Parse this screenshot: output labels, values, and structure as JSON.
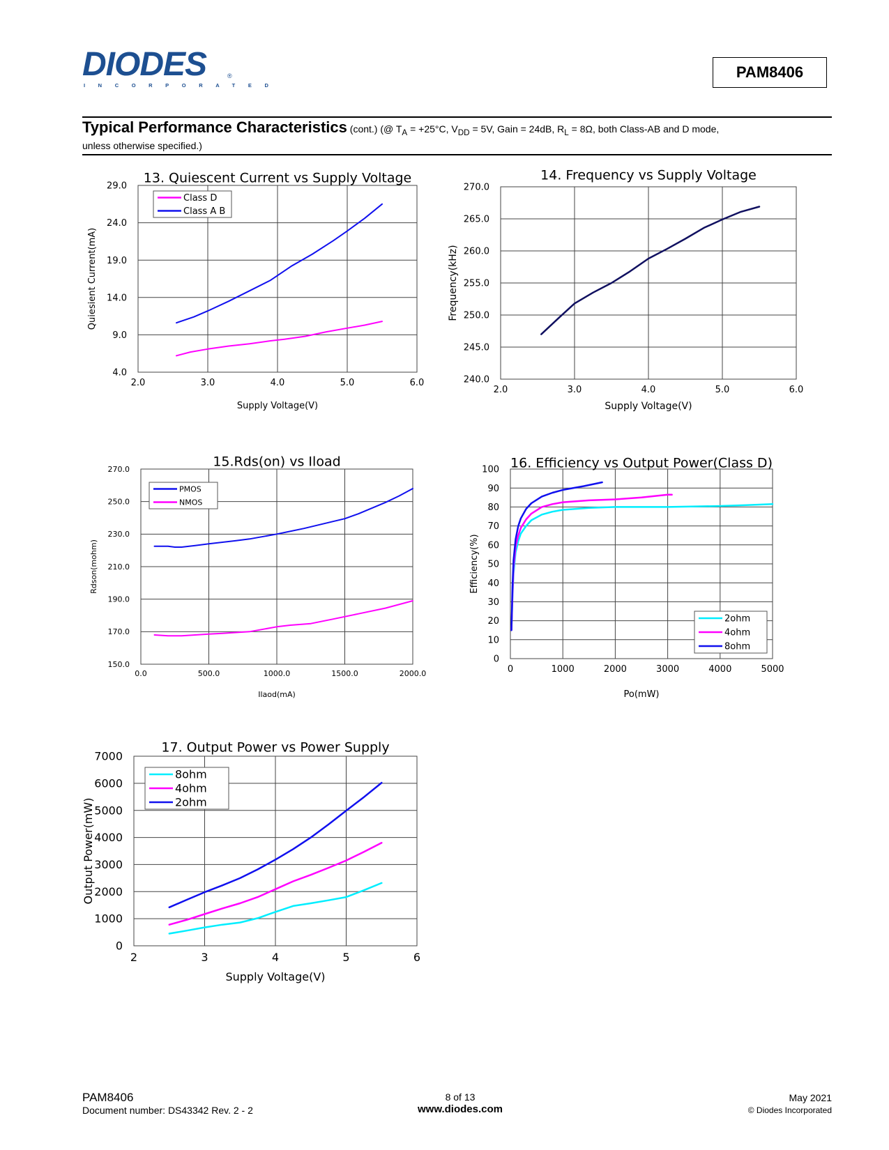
{
  "header": {
    "logo_text": "DIODES",
    "logo_subtext": "INCORPORATED",
    "logo_registered": "®",
    "part_number": "PAM8406"
  },
  "section": {
    "title": "Typical Performance Characteristics",
    "cont": "(cont.)",
    "conditions_prefix": "(@ T",
    "ta_sub": "A",
    "conditions_mid1": " = +25°C, V",
    "vdd_sub": "DD",
    "conditions_mid2": " = 5V, Gain = 24dB, R",
    "rl_sub": "L",
    "conditions_end": " = 8Ω, both Class-AB and D mode,",
    "conditions_line2": "unless otherwise specified.)"
  },
  "colors": {
    "magenta": "#ff00ff",
    "blue": "#1010ee",
    "navy": "#101060",
    "cyan": "#00eeff",
    "logo": "#1d4f91"
  },
  "footer": {
    "part": "PAM8406",
    "doc_number": "Document number: DS43342 Rev. 2 - 2",
    "page": "8 of 13",
    "url": "www.diodes.com",
    "date": "May 2021",
    "copyright": "© Diodes Incorporated"
  },
  "chart_data": [
    {
      "id": "chart13",
      "type": "line",
      "title": "13. Quiescent Current vs Supply Voltage",
      "xlabel": "Supply Voltage(V)",
      "ylabel": "Quiesient Current(mA)",
      "xlim": [
        2.0,
        6.0
      ],
      "ylim": [
        4.0,
        29.0
      ],
      "xticks": [
        2.0,
        3.0,
        4.0,
        5.0,
        6.0
      ],
      "yticks": [
        4.0,
        9.0,
        14.0,
        19.0,
        24.0,
        29.0
      ],
      "tick_decimals": 1,
      "legend": "top-left",
      "series": [
        {
          "name": "Class D",
          "color": "#ff00ff",
          "x": [
            2.55,
            2.75,
            3.0,
            3.3,
            3.6,
            3.9,
            4.1,
            4.4,
            4.7,
            5.0,
            5.25,
            5.5
          ],
          "y": [
            6.2,
            6.7,
            7.1,
            7.5,
            7.8,
            8.2,
            8.4,
            8.8,
            9.4,
            9.9,
            10.3,
            10.8
          ]
        },
        {
          "name": "Class A B",
          "color": "#1010ee",
          "x": [
            2.55,
            2.8,
            3.0,
            3.3,
            3.6,
            3.9,
            4.2,
            4.5,
            4.8,
            5.0,
            5.25,
            5.5
          ],
          "y": [
            10.6,
            11.4,
            12.2,
            13.5,
            14.9,
            16.3,
            18.2,
            19.8,
            21.6,
            22.9,
            24.6,
            26.5
          ]
        }
      ]
    },
    {
      "id": "chart14",
      "type": "line",
      "title": "14. Frequency vs Supply Voltage",
      "xlabel": "Supply Voltage(V)",
      "ylabel": "Frequency(kHz)",
      "xlim": [
        2.0,
        6.0
      ],
      "ylim": [
        240.0,
        270.0
      ],
      "xticks": [
        2.0,
        3.0,
        4.0,
        5.0,
        6.0
      ],
      "yticks": [
        240.0,
        245.0,
        250.0,
        255.0,
        260.0,
        265.0,
        270.0
      ],
      "tick_decimals": 1,
      "legend": "none",
      "series": [
        {
          "name": "Frequency",
          "color": "#101060",
          "x": [
            2.55,
            2.8,
            3.0,
            3.25,
            3.5,
            3.75,
            4.0,
            4.25,
            4.5,
            4.75,
            5.0,
            5.25,
            5.5
          ],
          "y": [
            247.0,
            249.7,
            251.8,
            253.5,
            255.0,
            256.8,
            258.8,
            260.3,
            261.9,
            263.6,
            264.9,
            266.1,
            266.9
          ]
        }
      ]
    },
    {
      "id": "chart15",
      "type": "line",
      "title": "15.Rds(on) vs Iload",
      "xlabel": "Ilaod(mA)",
      "ylabel": "Rdson(mohm)",
      "xlim": [
        0,
        2000
      ],
      "ylim": [
        150.0,
        270.0
      ],
      "xticks": [
        0,
        500,
        1000,
        1500,
        2000
      ],
      "yticks": [
        150.0,
        170.0,
        190.0,
        210.0,
        230.0,
        250.0,
        270.0
      ],
      "tick_decimals": 1,
      "legend": "top-left",
      "series": [
        {
          "name": "PMOS",
          "color": "#1010ee",
          "x": [
            100,
            200,
            250,
            300,
            400,
            500,
            600,
            700,
            800,
            900,
            1000,
            1200,
            1400,
            1500,
            1600,
            1800,
            1900,
            2000
          ],
          "y": [
            222.5,
            222.5,
            222.0,
            222.0,
            223.0,
            224.0,
            225.0,
            226.0,
            227.0,
            228.5,
            230.0,
            233.5,
            237.5,
            239.5,
            242.5,
            249.5,
            253.5,
            258.0
          ]
        },
        {
          "name": "NMOS",
          "color": "#ff00ff",
          "x": [
            100,
            200,
            300,
            400,
            500,
            600,
            800,
            1000,
            1100,
            1250,
            1400,
            1600,
            1800,
            2000
          ],
          "y": [
            168.0,
            167.5,
            167.5,
            168.0,
            168.5,
            169.0,
            170.0,
            173.0,
            174.0,
            175.0,
            177.5,
            181.0,
            184.5,
            189.0
          ]
        }
      ]
    },
    {
      "id": "chart16",
      "type": "line",
      "title": "16. Efficiency vs Output Power(Class D)",
      "xlabel": "Po(mW)",
      "ylabel": "Efficiency(%)",
      "xlim": [
        0,
        5000
      ],
      "ylim": [
        0,
        100
      ],
      "xticks": [
        0,
        1000,
        2000,
        3000,
        4000,
        5000
      ],
      "yticks": [
        0,
        10,
        20,
        30,
        40,
        50,
        60,
        70,
        80,
        90,
        100
      ],
      "tick_decimals": 0,
      "legend": "bottom-right",
      "series": [
        {
          "name": "2ohm",
          "color": "#00eeff",
          "x": [
            20,
            40,
            60,
            100,
            150,
            200,
            300,
            400,
            600,
            800,
            1000,
            1500,
            2000,
            3000,
            4000,
            4500,
            5000
          ],
          "y": [
            15,
            32,
            45,
            56,
            62,
            66,
            70,
            73,
            76,
            77.5,
            78.5,
            79.5,
            80,
            80,
            80.5,
            81,
            81.5
          ]
        },
        {
          "name": "4ohm",
          "color": "#ff00ff",
          "x": [
            20,
            40,
            60,
            100,
            150,
            200,
            300,
            400,
            600,
            800,
            1000,
            1500,
            2000,
            2500,
            3000,
            3080
          ],
          "y": [
            15,
            34,
            48,
            59,
            65,
            69,
            73.5,
            76.5,
            80,
            81.5,
            82.5,
            83.5,
            84,
            85,
            86.5,
            86.5
          ]
        },
        {
          "name": "8ohm",
          "color": "#1010ee",
          "x": [
            20,
            40,
            60,
            100,
            150,
            200,
            300,
            400,
            600,
            800,
            1000,
            1400,
            1750
          ],
          "y": [
            15,
            38,
            52,
            63,
            70,
            74,
            79,
            82,
            85.5,
            87.5,
            89,
            91,
            93
          ]
        }
      ]
    },
    {
      "id": "chart17",
      "type": "line",
      "title": "17. Output Power vs Power Supply",
      "xlabel": "Supply Voltage(V)",
      "ylabel": "Output Power(mW)",
      "xlim": [
        2,
        6
      ],
      "ylim": [
        0,
        7000
      ],
      "xticks": [
        2,
        3,
        4,
        5,
        6
      ],
      "yticks": [
        0,
        1000,
        2000,
        3000,
        4000,
        5000,
        6000,
        7000
      ],
      "tick_decimals": 0,
      "legend": "top-left",
      "series": [
        {
          "name": "8ohm",
          "color": "#00eeff",
          "x": [
            2.5,
            2.75,
            3.0,
            3.25,
            3.5,
            3.75,
            4.0,
            4.25,
            4.5,
            4.75,
            5.0,
            5.25,
            5.5
          ],
          "y": [
            450,
            560,
            680,
            780,
            860,
            1020,
            1250,
            1470,
            1570,
            1680,
            1800,
            2050,
            2320
          ]
        },
        {
          "name": "4ohm",
          "color": "#ff00ff",
          "x": [
            2.5,
            2.75,
            3.0,
            3.25,
            3.5,
            3.75,
            4.0,
            4.25,
            4.5,
            4.75,
            5.0,
            5.25,
            5.5
          ],
          "y": [
            780,
            960,
            1170,
            1380,
            1570,
            1800,
            2090,
            2380,
            2620,
            2880,
            3150,
            3470,
            3800
          ]
        },
        {
          "name": "2ohm",
          "color": "#1010ee",
          "x": [
            2.5,
            2.75,
            3.0,
            3.25,
            3.5,
            3.75,
            4.0,
            4.25,
            4.5,
            4.75,
            5.0,
            5.25,
            5.5
          ],
          "y": [
            1420,
            1700,
            1980,
            2230,
            2500,
            2820,
            3180,
            3570,
            4000,
            4480,
            4990,
            5490,
            6020
          ]
        }
      ]
    }
  ]
}
